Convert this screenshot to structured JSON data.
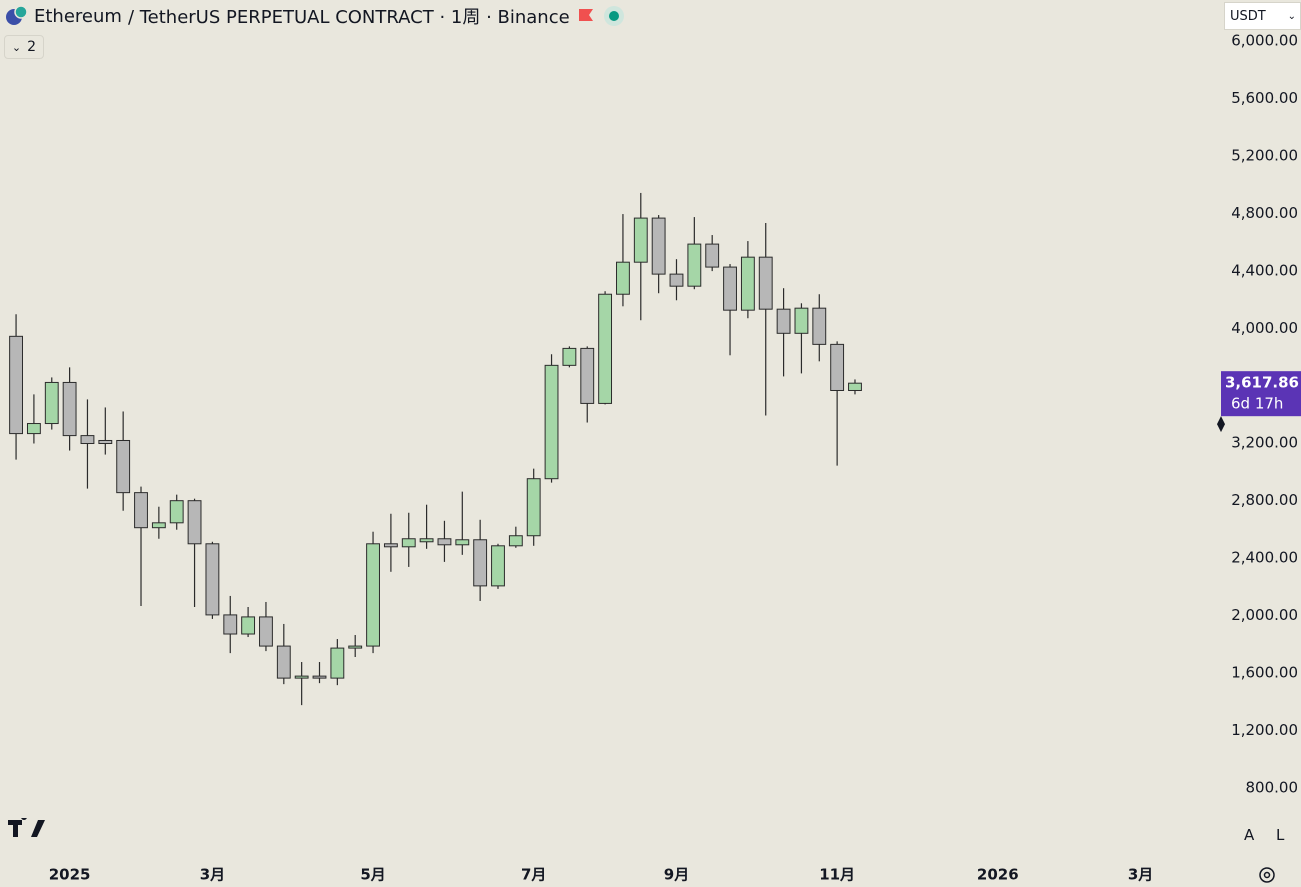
{
  "header": {
    "symbol": "Ethereum",
    "contract": "/ TetherUS PERPETUAL CONTRACT · 1周 · Binance",
    "indicators": "2",
    "currency": "USDT",
    "auto_scale": "A",
    "log_scale": "L"
  },
  "chart_data": {
    "type": "candlestick",
    "x": [
      0,
      1,
      2,
      3,
      4,
      5,
      6,
      7,
      8,
      9,
      10,
      11,
      12,
      13,
      14,
      15,
      16,
      17,
      18,
      19,
      20,
      21,
      22,
      23,
      24,
      25,
      26,
      27,
      28,
      29,
      30,
      31,
      32,
      33,
      34,
      35,
      36,
      37,
      38,
      39,
      40,
      41,
      42,
      43,
      44,
      45,
      46,
      47
    ],
    "open": [
      3944,
      3267,
      3337,
      3623,
      3253,
      3219,
      3219,
      2856,
      2612,
      2646,
      2800,
      2500,
      2005,
      1872,
      1991,
      1788,
      1565,
      1579,
      1565,
      1774,
      1788,
      2500,
      2479,
      2514,
      2535,
      2493,
      2528,
      2207,
      2486,
      2556,
      2953,
      3742,
      3860,
      3477,
      4237,
      4460,
      4767,
      4377,
      4293,
      4586,
      4426,
      4126,
      4495,
      4133,
      3965,
      4140,
      3888,
      3567
    ],
    "high": [
      4098,
      3540,
      3658,
      3728,
      3505,
      3449,
      3421,
      2898,
      2758,
      2842,
      2814,
      2514,
      2137,
      2060,
      2095,
      1942,
      1677,
      1677,
      1837,
      1865,
      2584,
      2709,
      2716,
      2772,
      2660,
      2863,
      2667,
      2500,
      2619,
      3023,
      3819,
      3874,
      3874,
      4258,
      4795,
      4942,
      4788,
      4481,
      4774,
      4649,
      4447,
      4607,
      4733,
      4279,
      4174,
      4237,
      3909,
      3644
    ],
    "low": [
      3086,
      3198,
      3295,
      3149,
      2884,
      3121,
      2730,
      2067,
      2535,
      2598,
      2060,
      1977,
      1739,
      1851,
      1753,
      1523,
      1377,
      1530,
      1516,
      1712,
      1739,
      2305,
      2339,
      2465,
      2374,
      2423,
      2102,
      2186,
      2472,
      2486,
      2926,
      3728,
      3344,
      3470,
      4153,
      4056,
      4244,
      4195,
      4272,
      4398,
      3812,
      4070,
      3393,
      3665,
      3686,
      3770,
      3044,
      3540
    ],
    "close": [
      3267,
      3337,
      3623,
      3253,
      3198,
      3198,
      2856,
      2612,
      2646,
      2800,
      2500,
      2005,
      1872,
      1991,
      1788,
      1565,
      1579,
      1565,
      1774,
      1788,
      2500,
      2479,
      2535,
      2535,
      2493,
      2528,
      2207,
      2486,
      2556,
      2953,
      3742,
      3860,
      3477,
      4237,
      4460,
      4767,
      4377,
      4293,
      4586,
      4426,
      4126,
      4495,
      4133,
      3965,
      4140,
      3888,
      3567,
      3617.86
    ],
    "up_color": "#a5d6a7",
    "down_color": "#b7b7b7",
    "border_color": "#2b2b2b",
    "xlim": [
      -0.9,
      67.45
    ],
    "xticks": [
      {
        "value": 3,
        "label": "2025"
      },
      {
        "value": 11,
        "label": "3月"
      },
      {
        "value": 20,
        "label": "5月"
      },
      {
        "value": 29,
        "label": "7月"
      },
      {
        "value": 37,
        "label": "9月"
      },
      {
        "value": 46,
        "label": "11月"
      },
      {
        "value": 55,
        "label": "2026"
      },
      {
        "value": 63,
        "label": "3月"
      }
    ],
    "ylim": [
      299,
      6285
    ],
    "yticks": [
      {
        "value": 800,
        "label": "800.00"
      },
      {
        "value": 1200,
        "label": "1,200.00"
      },
      {
        "value": 1600,
        "label": "1,600.00"
      },
      {
        "value": 2000,
        "label": "2,000.00"
      },
      {
        "value": 2400,
        "label": "2,400.00"
      },
      {
        "value": 2800,
        "label": "2,800.00"
      },
      {
        "value": 3200,
        "label": "3,200.00"
      },
      {
        "value": 4000,
        "label": "4,000.00"
      },
      {
        "value": 4400,
        "label": "4,400.00"
      },
      {
        "value": 4800,
        "label": "4,800.00"
      },
      {
        "value": 5200,
        "label": "5,200.00"
      },
      {
        "value": 5600,
        "label": "5,600.00"
      },
      {
        "value": 6000,
        "label": "6,000.00"
      }
    ],
    "last_price": {
      "value": 3617.86,
      "label": "3,617.86"
    },
    "countdown": "6d 17h",
    "last_price_color": "#5b34b5",
    "grid": false
  }
}
